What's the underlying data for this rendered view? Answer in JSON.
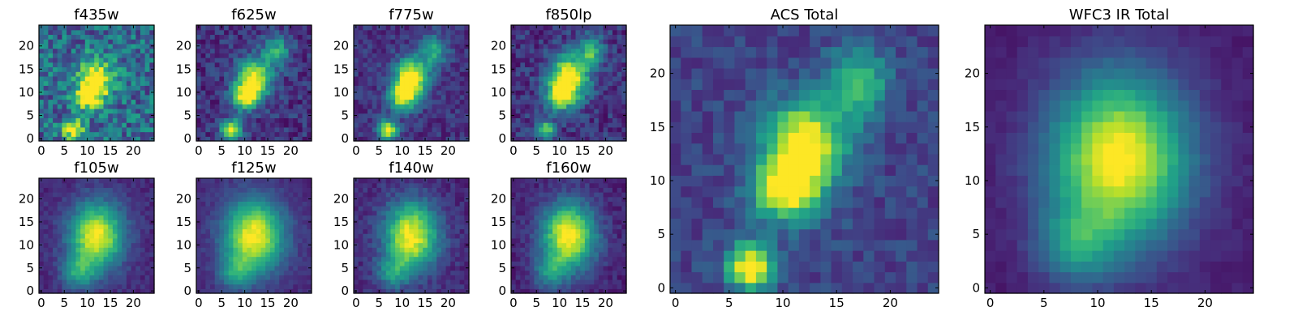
{
  "chart_data": [
    {
      "type": "heatmap",
      "title": "f435w",
      "colormap": "viridis",
      "xlim": [
        0,
        24
      ],
      "ylim": [
        0,
        24
      ],
      "xticks": [
        0,
        5,
        10,
        15,
        20
      ],
      "yticks": [
        0,
        5,
        10,
        15,
        20
      ],
      "grid": false,
      "peaks": [
        {
          "x": 12,
          "y": 13,
          "sigma_x": 2.5,
          "sigma_y": 3,
          "amp": 0.8
        },
        {
          "x": 10,
          "y": 9,
          "sigma_x": 2,
          "sigma_y": 2,
          "amp": 0.6
        },
        {
          "x": 7,
          "y": 2,
          "sigma_x": 1.5,
          "sigma_y": 1.5,
          "amp": 0.8
        }
      ],
      "background": 0.35,
      "noise": 0.45
    },
    {
      "type": "heatmap",
      "title": "f625w",
      "colormap": "viridis",
      "xlim": [
        0,
        24
      ],
      "ylim": [
        0,
        24
      ],
      "xticks": [
        0,
        5,
        10,
        15,
        20
      ],
      "yticks": [
        0,
        5,
        10,
        15,
        20
      ],
      "grid": false,
      "peaks": [
        {
          "x": 12,
          "y": 13,
          "sigma_x": 2.5,
          "sigma_y": 3,
          "amp": 0.9
        },
        {
          "x": 10,
          "y": 9,
          "sigma_x": 2,
          "sigma_y": 2,
          "amp": 0.7
        },
        {
          "x": 7,
          "y": 2,
          "sigma_x": 1.5,
          "sigma_y": 1.5,
          "amp": 0.9
        },
        {
          "x": 17,
          "y": 19,
          "sigma_x": 2,
          "sigma_y": 2.5,
          "amp": 0.45
        }
      ],
      "background": 0.15,
      "noise": 0.25
    },
    {
      "type": "heatmap",
      "title": "f775w",
      "colormap": "viridis",
      "xlim": [
        0,
        24
      ],
      "ylim": [
        0,
        24
      ],
      "xticks": [
        0,
        5,
        10,
        15,
        20
      ],
      "yticks": [
        0,
        5,
        10,
        15,
        20
      ],
      "grid": false,
      "peaks": [
        {
          "x": 12,
          "y": 13,
          "sigma_x": 2.5,
          "sigma_y": 3,
          "amp": 0.95
        },
        {
          "x": 10,
          "y": 9,
          "sigma_x": 2,
          "sigma_y": 2,
          "amp": 0.7
        },
        {
          "x": 7,
          "y": 2,
          "sigma_x": 1.5,
          "sigma_y": 1.5,
          "amp": 0.85
        },
        {
          "x": 17,
          "y": 19,
          "sigma_x": 2,
          "sigma_y": 2.5,
          "amp": 0.45
        }
      ],
      "background": 0.15,
      "noise": 0.2
    },
    {
      "type": "heatmap",
      "title": "f850lp",
      "colormap": "viridis",
      "xlim": [
        0,
        24
      ],
      "ylim": [
        0,
        24
      ],
      "xticks": [
        0,
        5,
        10,
        15,
        20
      ],
      "yticks": [
        0,
        5,
        10,
        15,
        20
      ],
      "grid": false,
      "peaks": [
        {
          "x": 12,
          "y": 13,
          "sigma_x": 3,
          "sigma_y": 3.5,
          "amp": 0.9
        },
        {
          "x": 10,
          "y": 9,
          "sigma_x": 2,
          "sigma_y": 2,
          "amp": 0.6
        },
        {
          "x": 7,
          "y": 2,
          "sigma_x": 1.5,
          "sigma_y": 1.5,
          "amp": 0.6
        },
        {
          "x": 17,
          "y": 19,
          "sigma_x": 2,
          "sigma_y": 2.5,
          "amp": 0.5
        }
      ],
      "background": 0.15,
      "noise": 0.25
    },
    {
      "type": "heatmap",
      "title": "f105w",
      "colormap": "viridis",
      "xlim": [
        0,
        24
      ],
      "ylim": [
        0,
        24
      ],
      "xticks": [
        0,
        5,
        10,
        15,
        20
      ],
      "yticks": [
        0,
        5,
        10,
        15,
        20
      ],
      "grid": false,
      "peaks": [
        {
          "x": 12,
          "y": 12,
          "sigma_x": 4,
          "sigma_y": 5,
          "amp": 0.9
        },
        {
          "x": 8,
          "y": 4,
          "sigma_x": 2.5,
          "sigma_y": 2.5,
          "amp": 0.4
        }
      ],
      "background": 0.12,
      "noise": 0.12
    },
    {
      "type": "heatmap",
      "title": "f125w",
      "colormap": "viridis",
      "xlim": [
        0,
        24
      ],
      "ylim": [
        0,
        24
      ],
      "xticks": [
        0,
        5,
        10,
        15,
        20
      ],
      "yticks": [
        0,
        5,
        10,
        15,
        20
      ],
      "grid": false,
      "peaks": [
        {
          "x": 12,
          "y": 12,
          "sigma_x": 4.5,
          "sigma_y": 5.5,
          "amp": 0.9
        },
        {
          "x": 8,
          "y": 4,
          "sigma_x": 2.5,
          "sigma_y": 2.5,
          "amp": 0.35
        }
      ],
      "background": 0.12,
      "noise": 0.1
    },
    {
      "type": "heatmap",
      "title": "f140w",
      "colormap": "viridis",
      "xlim": [
        0,
        24
      ],
      "ylim": [
        0,
        24
      ],
      "xticks": [
        0,
        5,
        10,
        15,
        20
      ],
      "yticks": [
        0,
        5,
        10,
        15,
        20
      ],
      "grid": false,
      "peaks": [
        {
          "x": 12,
          "y": 12,
          "sigma_x": 4,
          "sigma_y": 5,
          "amp": 0.9
        },
        {
          "x": 8,
          "y": 4,
          "sigma_x": 2.5,
          "sigma_y": 2.5,
          "amp": 0.35
        }
      ],
      "background": 0.12,
      "noise": 0.15
    },
    {
      "type": "heatmap",
      "title": "f160w",
      "colormap": "viridis",
      "xlim": [
        0,
        24
      ],
      "ylim": [
        0,
        24
      ],
      "xticks": [
        0,
        5,
        10,
        15,
        20
      ],
      "yticks": [
        0,
        5,
        10,
        15,
        20
      ],
      "grid": false,
      "peaks": [
        {
          "x": 12,
          "y": 12,
          "sigma_x": 4,
          "sigma_y": 5,
          "amp": 0.95
        },
        {
          "x": 8,
          "y": 4,
          "sigma_x": 2.5,
          "sigma_y": 2.5,
          "amp": 0.35
        }
      ],
      "background": 0.1,
      "noise": 0.14
    },
    {
      "type": "heatmap",
      "title": "ACS Total",
      "colormap": "viridis",
      "xlim": [
        0,
        24
      ],
      "ylim": [
        0,
        24
      ],
      "xticks": [
        0,
        5,
        10,
        15,
        20
      ],
      "yticks": [
        0,
        5,
        10,
        15,
        20
      ],
      "grid": false,
      "peaks": [
        {
          "x": 12,
          "y": 13,
          "sigma_x": 2.5,
          "sigma_y": 3,
          "amp": 0.95
        },
        {
          "x": 10,
          "y": 9,
          "sigma_x": 2,
          "sigma_y": 2,
          "amp": 0.7
        },
        {
          "x": 7,
          "y": 2,
          "sigma_x": 1.5,
          "sigma_y": 1.5,
          "amp": 0.95
        },
        {
          "x": 17,
          "y": 19,
          "sigma_x": 2,
          "sigma_y": 2.5,
          "amp": 0.5
        }
      ],
      "background": 0.2,
      "noise": 0.18
    },
    {
      "type": "heatmap",
      "title": "WFC3 IR Total",
      "colormap": "viridis",
      "xlim": [
        0,
        24
      ],
      "ylim": [
        0,
        24
      ],
      "xticks": [
        0,
        5,
        10,
        15,
        20
      ],
      "yticks": [
        0,
        5,
        10,
        15,
        20
      ],
      "grid": false,
      "peaks": [
        {
          "x": 12,
          "y": 12,
          "sigma_x": 4.5,
          "sigma_y": 5.5,
          "amp": 0.95
        },
        {
          "x": 8,
          "y": 4,
          "sigma_x": 2.5,
          "sigma_y": 2.5,
          "amp": 0.35
        }
      ],
      "background": 0.08,
      "noise": 0.06
    }
  ]
}
